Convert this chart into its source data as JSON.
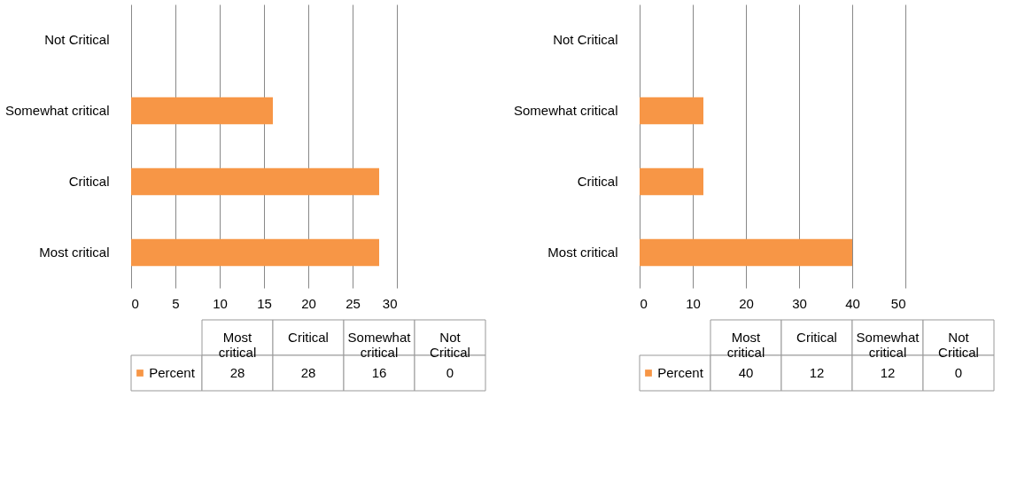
{
  "chart_data": [
    {
      "type": "bar",
      "orientation": "horizontal",
      "categories": [
        "Not Critical",
        "Somewhat critical",
        "Critical",
        "Most critical"
      ],
      "series": [
        {
          "name": "Percent",
          "color": "#f79646",
          "values": [
            0,
            16,
            28,
            28
          ]
        }
      ],
      "value_labels": [
        "0",
        "16",
        "28",
        "28"
      ],
      "xlim": [
        0,
        30
      ],
      "xticks": [
        0,
        5,
        10,
        15,
        20,
        25,
        30
      ],
      "grid": "x",
      "legend": "bottom"
    },
    {
      "type": "bar",
      "orientation": "horizontal",
      "categories": [
        "Not Critical",
        "Somewhat critical",
        "Critical",
        "Most critical"
      ],
      "series": [
        {
          "name": "Percent",
          "color": "#f79646",
          "values": [
            0,
            12,
            12,
            40
          ]
        }
      ],
      "value_labels": [
        "0",
        "12",
        "12",
        "40"
      ],
      "xlim": [
        0,
        50
      ],
      "xticks": [
        0,
        10,
        20,
        30,
        40,
        50
      ],
      "grid": "x",
      "legend": "bottom"
    }
  ]
}
